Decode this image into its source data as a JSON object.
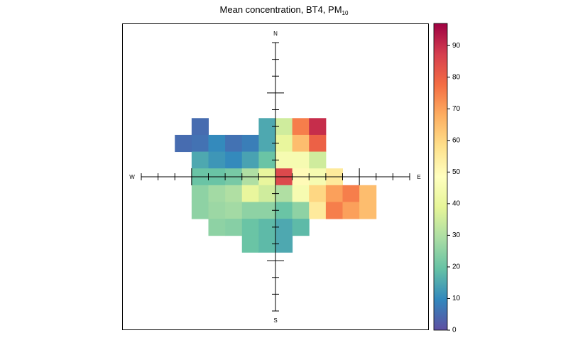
{
  "chart_data": {
    "type": "polar-surface",
    "title": "Mean concentration, BT4, PM",
    "title_subscript": "10",
    "compass": {
      "north": "N",
      "south": "S",
      "east": "E",
      "west": "W"
    },
    "rlim": [
      0,
      8
    ],
    "rticks": [
      1,
      2,
      3,
      4,
      5,
      6,
      7,
      8
    ],
    "rticks_major": [
      5
    ],
    "grid": {
      "u": [
        -5.5,
        -4.5,
        -3.5,
        -2.5,
        -1.5,
        -0.5,
        0.5,
        1.5,
        2.5,
        3.5,
        4.5,
        5.5
      ],
      "v": [
        3,
        2,
        1,
        0,
        -1,
        -2,
        -3,
        -4
      ],
      "z": [
        [
          null,
          5,
          null,
          null,
          null,
          15,
          35,
          75,
          90,
          null,
          null,
          null
        ],
        [
          5,
          6,
          10,
          6,
          8,
          15,
          40,
          65,
          80,
          null,
          null,
          null
        ],
        [
          null,
          15,
          12,
          10,
          14,
          20,
          45,
          45,
          35,
          null,
          null,
          null
        ],
        [
          null,
          20,
          20,
          22,
          30,
          40,
          85,
          50,
          45,
          55,
          null,
          null
        ],
        [
          null,
          25,
          28,
          30,
          40,
          35,
          30,
          45,
          60,
          70,
          75,
          65
        ],
        [
          null,
          25,
          27,
          28,
          25,
          25,
          20,
          25,
          55,
          75,
          70,
          65
        ],
        [
          null,
          null,
          25,
          24,
          20,
          18,
          15,
          18,
          null,
          null,
          null,
          null
        ],
        [
          null,
          null,
          null,
          null,
          20,
          18,
          15,
          null,
          null,
          null,
          null,
          null
        ]
      ]
    },
    "zlim": [
      0,
      97
    ],
    "zticks": [
      0,
      10,
      20,
      30,
      40,
      50,
      60,
      70,
      80,
      90
    ],
    "colors": [
      "#5E4FA2",
      "#3288BD",
      "#66C2A5",
      "#ABDDA4",
      "#E6F598",
      "#FFFFBF",
      "#FEE08B",
      "#FDAE61",
      "#F46D43",
      "#D53E4F",
      "#9E0142"
    ]
  }
}
